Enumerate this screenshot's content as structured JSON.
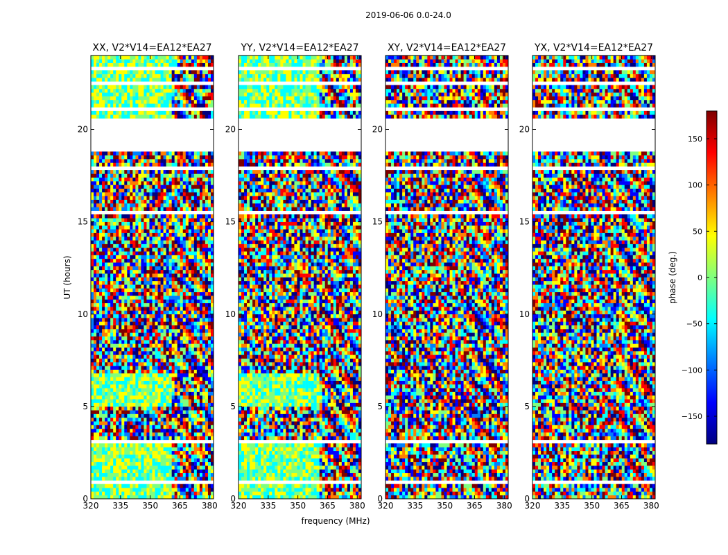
{
  "figure_title": "2019-06-06 0.0-24.0",
  "xlabel": "frequency (MHz)",
  "ylabel": "UT (hours)",
  "chart_data": [
    {
      "type": "heatmap",
      "title": "XX, V2*V14=EA12*EA27",
      "x_range": [
        320,
        382
      ],
      "y_range": [
        0,
        24
      ]
    },
    {
      "type": "heatmap",
      "title": "YY, V2*V14=EA12*EA27",
      "x_range": [
        320,
        382
      ],
      "y_range": [
        0,
        24
      ]
    },
    {
      "type": "heatmap",
      "title": "XY, V2*V14=EA12*EA27",
      "x_range": [
        320,
        382
      ],
      "y_range": [
        0,
        24
      ]
    },
    {
      "type": "heatmap",
      "title": "YX, V2*V14=EA12*EA27",
      "x_range": [
        320,
        382
      ],
      "y_range": [
        0,
        24
      ]
    }
  ],
  "x_ticks": [
    "320",
    "335",
    "350",
    "365",
    "380"
  ],
  "x_tick_values": [
    320,
    335,
    350,
    365,
    380
  ],
  "y_ticks": [
    "0",
    "5",
    "10",
    "15",
    "20"
  ],
  "y_tick_values": [
    0,
    5,
    10,
    15,
    20
  ],
  "flagged_ut_ranges": [
    [
      17.75,
      18.0
    ],
    [
      18.8,
      20.55
    ],
    [
      21.0,
      21.2
    ],
    [
      22.45,
      22.6
    ],
    [
      23.3,
      23.5
    ],
    [
      15.45,
      15.6
    ],
    [
      3.1,
      3.2
    ],
    [
      2.55,
      2.65
    ],
    [
      0.85,
      0.9
    ]
  ],
  "colorbar": {
    "label": "phase (deg.)",
    "range": [
      -180,
      180
    ],
    "ticks": [
      "150",
      "100",
      "50",
      "0",
      "−50",
      "−100",
      "−150"
    ],
    "tick_values": [
      150,
      100,
      50,
      0,
      -50,
      -100,
      -150
    ],
    "colors": [
      "#00007f",
      "#0000ff",
      "#007fff",
      "#00ffff",
      "#7fff7f",
      "#ffff00",
      "#ff7f00",
      "#ff0000",
      "#7f0000"
    ]
  }
}
